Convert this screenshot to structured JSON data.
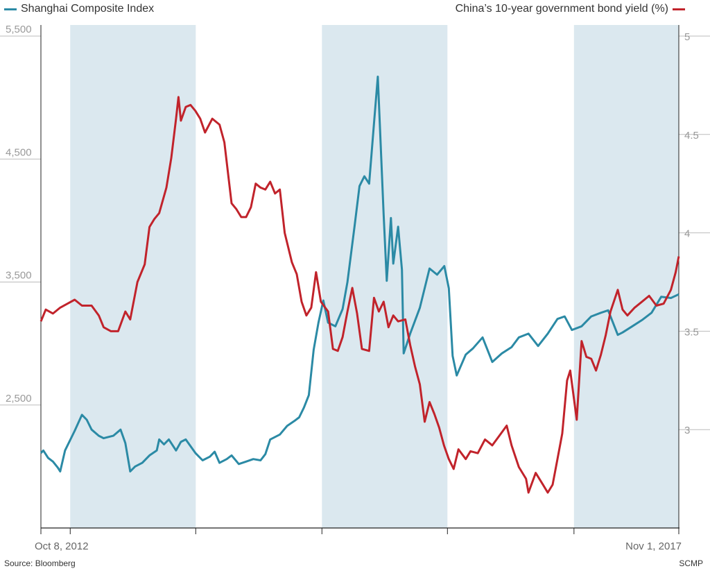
{
  "chart_data": {
    "type": "line",
    "legend": {
      "left_label": "Shanghai Composite Index",
      "right_label": "China’s 10-year government bond yield (%)"
    },
    "x_start_label": "Oct 8, 2012",
    "x_end_label": "Nov 1, 2017",
    "source": "Source: Bloomberg",
    "credit": "SCMP",
    "y_left": {
      "range": [
        1500,
        5500
      ],
      "ticks": [
        "5,500",
        "4,500",
        "3,500",
        "2,500"
      ],
      "tick_values": [
        5500,
        4500,
        3500,
        2500
      ]
    },
    "y_right": {
      "range": [
        2.5,
        5.0
      ],
      "ticks": [
        "5",
        "4.5",
        "4",
        "3.5",
        "3"
      ],
      "tick_values": [
        5,
        4.5,
        4,
        3.5,
        3
      ]
    },
    "x_range": [
      "2012-10-08",
      "2017-11-01"
    ],
    "shaded_periods": [
      [
        "2013-01-01",
        "2013-12-31"
      ],
      [
        "2015-01-01",
        "2015-12-31"
      ],
      [
        "2017-01-01",
        "2017-11-01"
      ]
    ],
    "series": [
      {
        "name": "Shanghai Composite Index",
        "axis": "left",
        "color": "#2b8aa5",
        "points": [
          [
            "2012-10-08",
            2110
          ],
          [
            "2012-10-15",
            2130
          ],
          [
            "2012-10-29",
            2070
          ],
          [
            "2012-11-12",
            2040
          ],
          [
            "2012-11-26",
            1990
          ],
          [
            "2012-12-03",
            1960
          ],
          [
            "2012-12-17",
            2130
          ],
          [
            "2013-01-14",
            2290
          ],
          [
            "2013-02-04",
            2420
          ],
          [
            "2013-02-18",
            2380
          ],
          [
            "2013-03-04",
            2300
          ],
          [
            "2013-03-25",
            2250
          ],
          [
            "2013-04-08",
            2230
          ],
          [
            "2013-05-06",
            2250
          ],
          [
            "2013-05-27",
            2300
          ],
          [
            "2013-06-10",
            2190
          ],
          [
            "2013-06-24",
            1960
          ],
          [
            "2013-07-08",
            2000
          ],
          [
            "2013-07-29",
            2030
          ],
          [
            "2013-08-19",
            2090
          ],
          [
            "2013-09-09",
            2130
          ],
          [
            "2013-09-16",
            2220
          ],
          [
            "2013-09-30",
            2180
          ],
          [
            "2013-10-14",
            2220
          ],
          [
            "2013-11-04",
            2130
          ],
          [
            "2013-11-18",
            2200
          ],
          [
            "2013-12-02",
            2220
          ],
          [
            "2013-12-30",
            2110
          ],
          [
            "2014-01-20",
            2050
          ],
          [
            "2014-02-10",
            2080
          ],
          [
            "2014-02-24",
            2120
          ],
          [
            "2014-03-10",
            2030
          ],
          [
            "2014-03-31",
            2060
          ],
          [
            "2014-04-14",
            2090
          ],
          [
            "2014-05-05",
            2020
          ],
          [
            "2014-05-26",
            2040
          ],
          [
            "2014-06-16",
            2060
          ],
          [
            "2014-07-07",
            2050
          ],
          [
            "2014-07-21",
            2100
          ],
          [
            "2014-08-04",
            2220
          ],
          [
            "2014-09-01",
            2260
          ],
          [
            "2014-09-22",
            2330
          ],
          [
            "2014-10-13",
            2370
          ],
          [
            "2014-10-27",
            2400
          ],
          [
            "2014-11-10",
            2480
          ],
          [
            "2014-11-24",
            2580
          ],
          [
            "2014-12-08",
            2950
          ],
          [
            "2014-12-22",
            3170
          ],
          [
            "2015-01-05",
            3350
          ],
          [
            "2015-01-19",
            3170
          ],
          [
            "2015-02-09",
            3140
          ],
          [
            "2015-03-02",
            3280
          ],
          [
            "2015-03-16",
            3500
          ],
          [
            "2015-04-06",
            3960
          ],
          [
            "2015-04-20",
            4280
          ],
          [
            "2015-05-04",
            4360
          ],
          [
            "2015-05-18",
            4300
          ],
          [
            "2015-06-01",
            4790
          ],
          [
            "2015-06-12",
            5170
          ],
          [
            "2015-06-29",
            4050
          ],
          [
            "2015-07-08",
            3510
          ],
          [
            "2015-07-20",
            4020
          ],
          [
            "2015-07-27",
            3650
          ],
          [
            "2015-08-10",
            3950
          ],
          [
            "2015-08-21",
            3600
          ],
          [
            "2015-08-26",
            2920
          ],
          [
            "2015-09-14",
            3080
          ],
          [
            "2015-10-12",
            3290
          ],
          [
            "2015-11-09",
            3610
          ],
          [
            "2015-12-01",
            3560
          ],
          [
            "2015-12-22",
            3630
          ],
          [
            "2016-01-04",
            3450
          ],
          [
            "2016-01-15",
            2900
          ],
          [
            "2016-01-27",
            2740
          ],
          [
            "2016-02-22",
            2910
          ],
          [
            "2016-03-14",
            2960
          ],
          [
            "2016-04-11",
            3050
          ],
          [
            "2016-05-09",
            2850
          ],
          [
            "2016-06-06",
            2920
          ],
          [
            "2016-07-04",
            2970
          ],
          [
            "2016-07-25",
            3050
          ],
          [
            "2016-08-22",
            3080
          ],
          [
            "2016-09-19",
            2980
          ],
          [
            "2016-10-17",
            3080
          ],
          [
            "2016-11-14",
            3200
          ],
          [
            "2016-12-05",
            3220
          ],
          [
            "2016-12-26",
            3110
          ],
          [
            "2017-01-23",
            3140
          ],
          [
            "2017-02-20",
            3220
          ],
          [
            "2017-03-20",
            3250
          ],
          [
            "2017-04-10",
            3270
          ],
          [
            "2017-05-08",
            3070
          ],
          [
            "2017-05-22",
            3090
          ],
          [
            "2017-06-19",
            3140
          ],
          [
            "2017-07-17",
            3190
          ],
          [
            "2017-08-14",
            3250
          ],
          [
            "2017-09-11",
            3380
          ],
          [
            "2017-10-09",
            3370
          ],
          [
            "2017-11-01",
            3400
          ]
        ]
      },
      {
        "name": "China’s 10-year government bond yield (%)",
        "axis": "right",
        "color": "#c1232b",
        "points": [
          [
            "2012-10-08",
            3.55
          ],
          [
            "2012-10-22",
            3.61
          ],
          [
            "2012-11-12",
            3.59
          ],
          [
            "2012-12-03",
            3.62
          ],
          [
            "2012-12-24",
            3.64
          ],
          [
            "2013-01-14",
            3.66
          ],
          [
            "2013-02-04",
            3.63
          ],
          [
            "2013-03-04",
            3.63
          ],
          [
            "2013-03-25",
            3.58
          ],
          [
            "2013-04-08",
            3.52
          ],
          [
            "2013-04-29",
            3.5
          ],
          [
            "2013-05-20",
            3.5
          ],
          [
            "2013-06-10",
            3.6
          ],
          [
            "2013-06-24",
            3.56
          ],
          [
            "2013-07-15",
            3.75
          ],
          [
            "2013-08-05",
            3.84
          ],
          [
            "2013-08-19",
            4.03
          ],
          [
            "2013-09-02",
            4.07
          ],
          [
            "2013-09-16",
            4.1
          ],
          [
            "2013-10-07",
            4.23
          ],
          [
            "2013-10-21",
            4.38
          ],
          [
            "2013-11-04",
            4.58
          ],
          [
            "2013-11-11",
            4.69
          ],
          [
            "2013-11-18",
            4.57
          ],
          [
            "2013-12-02",
            4.64
          ],
          [
            "2013-12-16",
            4.65
          ],
          [
            "2013-12-30",
            4.62
          ],
          [
            "2014-01-13",
            4.58
          ],
          [
            "2014-01-27",
            4.51
          ],
          [
            "2014-02-17",
            4.58
          ],
          [
            "2014-03-10",
            4.55
          ],
          [
            "2014-03-24",
            4.46
          ],
          [
            "2014-04-14",
            4.15
          ],
          [
            "2014-04-28",
            4.12
          ],
          [
            "2014-05-12",
            4.08
          ],
          [
            "2014-05-26",
            4.08
          ],
          [
            "2014-06-09",
            4.13
          ],
          [
            "2014-06-23",
            4.25
          ],
          [
            "2014-07-07",
            4.23
          ],
          [
            "2014-07-21",
            4.22
          ],
          [
            "2014-08-04",
            4.26
          ],
          [
            "2014-08-18",
            4.2
          ],
          [
            "2014-09-01",
            4.22
          ],
          [
            "2014-09-15",
            4.0
          ],
          [
            "2014-10-06",
            3.85
          ],
          [
            "2014-10-20",
            3.79
          ],
          [
            "2014-11-03",
            3.65
          ],
          [
            "2014-11-17",
            3.58
          ],
          [
            "2014-12-01",
            3.62
          ],
          [
            "2014-12-15",
            3.8
          ],
          [
            "2014-12-29",
            3.65
          ],
          [
            "2015-01-19",
            3.6
          ],
          [
            "2015-02-02",
            3.41
          ],
          [
            "2015-02-16",
            3.4
          ],
          [
            "2015-03-02",
            3.47
          ],
          [
            "2015-03-16",
            3.6
          ],
          [
            "2015-03-30",
            3.72
          ],
          [
            "2015-04-13",
            3.59
          ],
          [
            "2015-04-27",
            3.41
          ],
          [
            "2015-05-18",
            3.4
          ],
          [
            "2015-06-01",
            3.67
          ],
          [
            "2015-06-15",
            3.6
          ],
          [
            "2015-06-29",
            3.65
          ],
          [
            "2015-07-13",
            3.52
          ],
          [
            "2015-07-27",
            3.58
          ],
          [
            "2015-08-10",
            3.55
          ],
          [
            "2015-08-31",
            3.56
          ],
          [
            "2015-09-14",
            3.43
          ],
          [
            "2015-09-28",
            3.32
          ],
          [
            "2015-10-12",
            3.23
          ],
          [
            "2015-10-26",
            3.04
          ],
          [
            "2015-11-09",
            3.14
          ],
          [
            "2015-11-23",
            3.08
          ],
          [
            "2015-12-07",
            3.01
          ],
          [
            "2015-12-21",
            2.92
          ],
          [
            "2016-01-04",
            2.85
          ],
          [
            "2016-01-18",
            2.8
          ],
          [
            "2016-02-01",
            2.9
          ],
          [
            "2016-02-22",
            2.85
          ],
          [
            "2016-03-07",
            2.89
          ],
          [
            "2016-03-28",
            2.88
          ],
          [
            "2016-04-18",
            2.95
          ],
          [
            "2016-05-09",
            2.92
          ],
          [
            "2016-05-30",
            2.97
          ],
          [
            "2016-06-20",
            3.02
          ],
          [
            "2016-07-04",
            2.92
          ],
          [
            "2016-07-25",
            2.81
          ],
          [
            "2016-08-15",
            2.75
          ],
          [
            "2016-08-22",
            2.68
          ],
          [
            "2016-09-12",
            2.78
          ],
          [
            "2016-10-03",
            2.72
          ],
          [
            "2016-10-17",
            2.68
          ],
          [
            "2016-10-31",
            2.72
          ],
          [
            "2016-11-14",
            2.85
          ],
          [
            "2016-11-28",
            2.98
          ],
          [
            "2016-12-12",
            3.25
          ],
          [
            "2016-12-21",
            3.3
          ],
          [
            "2017-01-09",
            3.05
          ],
          [
            "2017-01-23",
            3.45
          ],
          [
            "2017-02-06",
            3.37
          ],
          [
            "2017-02-20",
            3.36
          ],
          [
            "2017-03-06",
            3.3
          ],
          [
            "2017-03-20",
            3.38
          ],
          [
            "2017-04-03",
            3.48
          ],
          [
            "2017-04-17",
            3.6
          ],
          [
            "2017-05-08",
            3.71
          ],
          [
            "2017-05-22",
            3.61
          ],
          [
            "2017-06-05",
            3.58
          ],
          [
            "2017-06-26",
            3.62
          ],
          [
            "2017-07-17",
            3.65
          ],
          [
            "2017-08-07",
            3.68
          ],
          [
            "2017-08-28",
            3.63
          ],
          [
            "2017-09-18",
            3.64
          ],
          [
            "2017-10-09",
            3.71
          ],
          [
            "2017-10-23",
            3.8
          ],
          [
            "2017-11-01",
            3.88
          ]
        ]
      }
    ]
  }
}
